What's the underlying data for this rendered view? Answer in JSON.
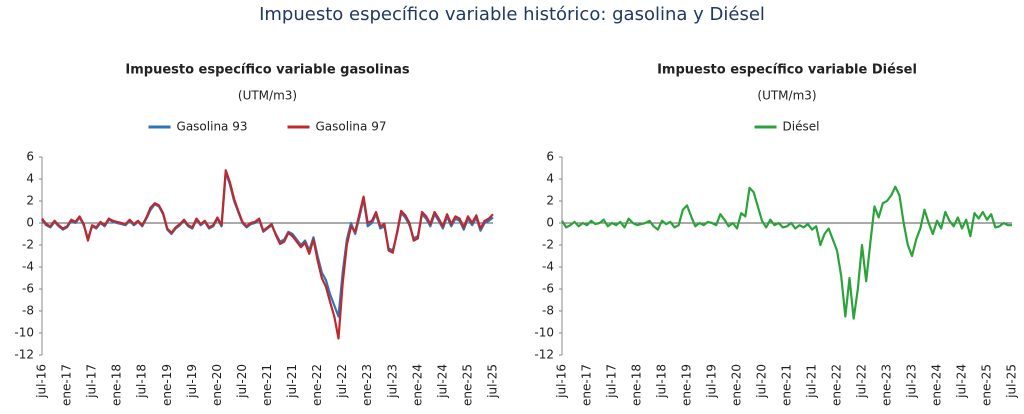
{
  "title": "Impuesto específico variable histórico: gasolina y Diésel",
  "chart_data": [
    {
      "type": "line",
      "title": "Impuesto específico variable gasolinas",
      "subtitle": "(UTM/m3)",
      "legend": "top",
      "categories": [
        "jul-16",
        null,
        null,
        null,
        null,
        null,
        "ene-17",
        null,
        null,
        null,
        null,
        null,
        "jul-17",
        null,
        null,
        null,
        null,
        null,
        "ene-18",
        null,
        null,
        null,
        null,
        null,
        "jul-18",
        null,
        null,
        null,
        null,
        null,
        "ene-19",
        null,
        null,
        null,
        null,
        null,
        "jul-19",
        null,
        null,
        null,
        null,
        null,
        "ene-20",
        null,
        null,
        null,
        null,
        null,
        "jul-20",
        null,
        null,
        null,
        null,
        null,
        "ene-21",
        null,
        null,
        null,
        null,
        null,
        "jul-21",
        null,
        null,
        null,
        null,
        null,
        "ene-22",
        null,
        null,
        null,
        null,
        null,
        "jul-22",
        null,
        null,
        null,
        null,
        null,
        "ene-23",
        null,
        null,
        null,
        null,
        null,
        "jul-23",
        null,
        null,
        null,
        null,
        null,
        "ene-24",
        null,
        null,
        null,
        null,
        null,
        "jul-24",
        null,
        null,
        null,
        null,
        null,
        "ene-25",
        null,
        null,
        null,
        null,
        null,
        "jul-25"
      ],
      "series": [
        {
          "name": "Gasolina 93",
          "color": "#2e75b6",
          "values": [
            0.3,
            -0.2,
            -0.4,
            0.1,
            -0.3,
            -0.6,
            -0.4,
            0.2,
            0.0,
            0.5,
            -0.2,
            -1.4,
            -0.3,
            -0.5,
            0.0,
            -0.3,
            0.3,
            0.1,
            0.0,
            -0.1,
            -0.2,
            0.2,
            -0.2,
            0.1,
            -0.3,
            0.4,
            1.2,
            1.7,
            1.5,
            0.8,
            -0.6,
            -1.0,
            -0.5,
            -0.2,
            0.2,
            -0.3,
            -0.5,
            0.3,
            -0.2,
            0.1,
            -0.5,
            -0.3,
            0.4,
            -0.3,
            4.6,
            3.5,
            2.0,
            1.0,
            0.0,
            -0.4,
            -0.1,
            0.0,
            0.3,
            -0.8,
            -0.5,
            -0.2,
            -1.0,
            -1.7,
            -1.5,
            -0.8,
            -1.0,
            -1.5,
            -2.0,
            -1.6,
            -2.5,
            -1.3,
            -3.0,
            -4.5,
            -5.2,
            -6.5,
            -7.5,
            -8.5,
            -4.5,
            -1.5,
            0.0,
            -1.0,
            0.5,
            2.2,
            -0.3,
            0.0,
            0.8,
            -0.5,
            -0.3,
            -2.3,
            -2.5,
            -1.0,
            0.9,
            0.5,
            -0.2,
            -1.4,
            -1.2,
            0.8,
            0.4,
            -0.3,
            0.8,
            0.2,
            -0.5,
            0.6,
            -0.3,
            0.4,
            0.2,
            -0.6,
            0.4,
            -0.2,
            0.5,
            -0.7,
            0.0,
            0.2,
            0.5
          ]
        },
        {
          "name": "Gasolina 97",
          "color": "#c0282d",
          "values": [
            0.4,
            -0.1,
            -0.3,
            0.2,
            -0.2,
            -0.5,
            -0.3,
            0.3,
            0.1,
            0.6,
            -0.1,
            -1.6,
            -0.2,
            -0.4,
            0.1,
            -0.2,
            0.4,
            0.2,
            0.1,
            0.0,
            -0.1,
            0.3,
            -0.1,
            0.2,
            -0.2,
            0.5,
            1.4,
            1.8,
            1.6,
            0.9,
            -0.5,
            -0.9,
            -0.4,
            -0.1,
            0.3,
            -0.2,
            -0.4,
            0.4,
            -0.1,
            0.2,
            -0.4,
            -0.2,
            0.5,
            -0.2,
            4.8,
            3.7,
            2.2,
            1.1,
            0.1,
            -0.3,
            0.0,
            0.1,
            0.4,
            -0.7,
            -0.4,
            -0.1,
            -1.1,
            -1.9,
            -1.7,
            -0.9,
            -1.2,
            -1.7,
            -2.2,
            -1.8,
            -2.8,
            -1.5,
            -3.4,
            -5.0,
            -5.8,
            -7.2,
            -8.5,
            -10.5,
            -5.5,
            -2.0,
            -0.3,
            -0.8,
            0.8,
            2.4,
            0.0,
            0.2,
            1.0,
            -0.3,
            -0.1,
            -2.5,
            -2.7,
            -0.9,
            1.1,
            0.7,
            0.0,
            -1.6,
            -1.4,
            1.0,
            0.6,
            -0.1,
            1.0,
            0.4,
            -0.3,
            0.8,
            -0.1,
            0.6,
            0.4,
            -0.4,
            0.6,
            0.0,
            0.7,
            -0.5,
            0.2,
            0.4,
            0.8
          ]
        }
      ],
      "ylim": [
        -12,
        6
      ],
      "yticks": [
        6,
        4,
        2,
        0,
        -2,
        -4,
        -6,
        -8,
        -10,
        -12
      ]
    },
    {
      "type": "line",
      "title": "Impuesto específico variable Diésel",
      "subtitle": "(UTM/m3)",
      "legend": "top",
      "categories": [
        "jul-16",
        null,
        null,
        null,
        null,
        null,
        "ene-17",
        null,
        null,
        null,
        null,
        null,
        "jul-17",
        null,
        null,
        null,
        null,
        null,
        "ene-18",
        null,
        null,
        null,
        null,
        null,
        "jul-18",
        null,
        null,
        null,
        null,
        null,
        "ene-19",
        null,
        null,
        null,
        null,
        null,
        "jul-19",
        null,
        null,
        null,
        null,
        null,
        "ene-20",
        null,
        null,
        null,
        null,
        null,
        "jul-20",
        null,
        null,
        null,
        null,
        null,
        "ene-21",
        null,
        null,
        null,
        null,
        null,
        "jul-21",
        null,
        null,
        null,
        null,
        null,
        "ene-22",
        null,
        null,
        null,
        null,
        null,
        "jul-22",
        null,
        null,
        null,
        null,
        null,
        "ene-23",
        null,
        null,
        null,
        null,
        null,
        "jul-23",
        null,
        null,
        null,
        null,
        null,
        "ene-24",
        null,
        null,
        null,
        null,
        null,
        "jul-24",
        null,
        null,
        null,
        null,
        null,
        "ene-25",
        null,
        null,
        null,
        null,
        null,
        "jul-25"
      ],
      "series": [
        {
          "name": "Diésel",
          "color": "#2aa33a",
          "values": [
            0.2,
            -0.4,
            -0.2,
            0.1,
            -0.3,
            0.0,
            -0.2,
            0.2,
            -0.1,
            0.0,
            0.3,
            -0.3,
            0.0,
            -0.2,
            0.1,
            -0.4,
            0.4,
            0.0,
            -0.2,
            -0.1,
            0.0,
            0.2,
            -0.3,
            -0.6,
            0.2,
            -0.1,
            0.1,
            -0.4,
            -0.2,
            1.2,
            1.6,
            0.6,
            -0.3,
            0.0,
            -0.2,
            0.1,
            0.0,
            -0.2,
            0.8,
            0.3,
            -0.3,
            0.0,
            -0.5,
            0.9,
            0.6,
            3.2,
            2.8,
            1.5,
            0.2,
            -0.4,
            0.3,
            -0.2,
            0.0,
            -0.4,
            -0.3,
            0.0,
            -0.5,
            -0.2,
            -0.4,
            -0.1,
            -0.6,
            -0.3,
            -2.0,
            -1.0,
            -0.5,
            -1.5,
            -2.5,
            -4.8,
            -8.5,
            -5.0,
            -8.7,
            -6.0,
            -2.0,
            -5.3,
            -1.8,
            1.5,
            0.5,
            1.8,
            2.0,
            2.5,
            3.3,
            2.5,
            0.0,
            -2.0,
            -3.0,
            -1.5,
            -0.5,
            1.2,
            0.0,
            -1.0,
            0.2,
            -0.5,
            1.0,
            0.2,
            -0.3,
            0.5,
            -0.5,
            0.3,
            -1.2,
            0.9,
            0.4,
            1.0,
            0.3,
            0.8,
            -0.4,
            -0.3,
            0.0,
            -0.2,
            -0.2
          ]
        }
      ],
      "ylim": [
        -12,
        6
      ],
      "yticks": [
        6,
        4,
        2,
        0,
        -2,
        -4,
        -6,
        -8,
        -10,
        -12
      ]
    }
  ]
}
